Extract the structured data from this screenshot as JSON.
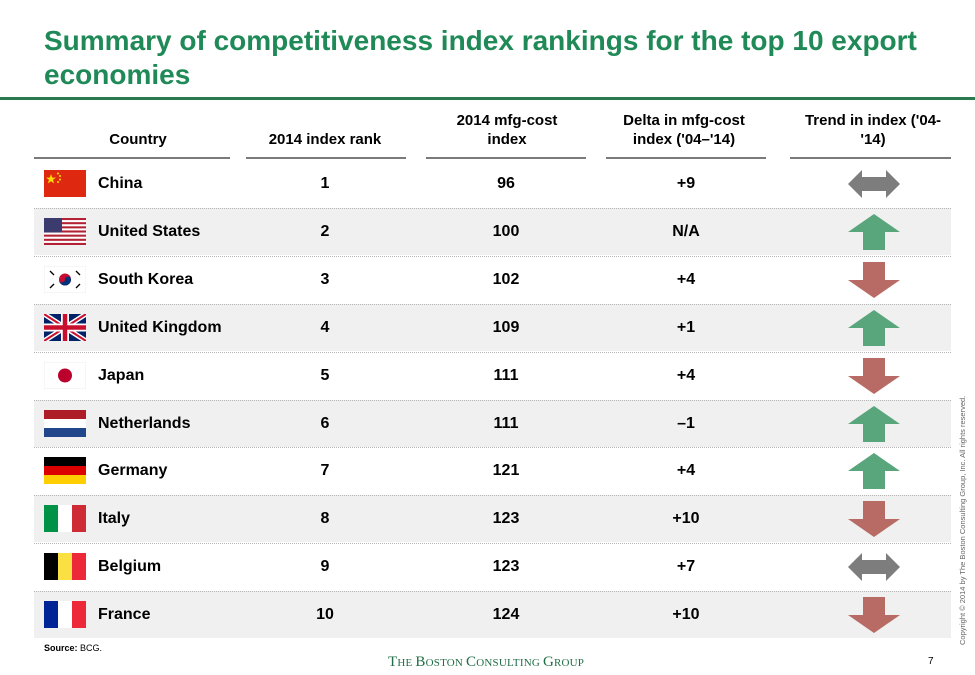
{
  "title": "Summary of competitiveness index rankings for the top 10 export economies",
  "headers": {
    "country": "Country",
    "rank": "2014 index rank",
    "cost": "2014 mfg-cost index",
    "delta": "Delta in mfg-cost index ('04–'14)",
    "trend": "Trend in index ('04-'14)"
  },
  "rows": [
    {
      "country": "China",
      "flag": "china-flag",
      "rank": "1",
      "cost": "96",
      "delta": "+9",
      "trend": "neutral"
    },
    {
      "country": "United States",
      "flag": "usa-flag",
      "rank": "2",
      "cost": "100",
      "delta": "N/A",
      "trend": "up"
    },
    {
      "country": "South Korea",
      "flag": "south-korea-flag",
      "rank": "3",
      "cost": "102",
      "delta": "+4",
      "trend": "down"
    },
    {
      "country": "United Kingdom",
      "flag": "uk-flag",
      "rank": "4",
      "cost": "109",
      "delta": "+1",
      "trend": "up"
    },
    {
      "country": "Japan",
      "flag": "japan-flag",
      "rank": "5",
      "cost": "111",
      "delta": "+4",
      "trend": "down"
    },
    {
      "country": "Netherlands",
      "flag": "netherlands-flag",
      "rank": "6",
      "cost": "111",
      "delta": "–1",
      "trend": "up"
    },
    {
      "country": "Germany",
      "flag": "germany-flag",
      "rank": "7",
      "cost": "121",
      "delta": "+4",
      "trend": "up"
    },
    {
      "country": "Italy",
      "flag": "italy-flag",
      "rank": "8",
      "cost": "123",
      "delta": "+10",
      "trend": "down"
    },
    {
      "country": "Belgium",
      "flag": "belgium-flag",
      "rank": "9",
      "cost": "123",
      "delta": "+7",
      "trend": "neutral"
    },
    {
      "country": "France",
      "flag": "france-flag",
      "rank": "10",
      "cost": "124",
      "delta": "+10",
      "trend": "down"
    }
  ],
  "colors": {
    "title": "#1f8a57",
    "up": "#5aa67c",
    "down": "#b86a64",
    "neutral": "#7d7d7d"
  },
  "footer": {
    "source_label": "Source:",
    "source_value": "BCG.",
    "brand": "The Boston Consulting Group",
    "page": "7",
    "copyright": "Copyright © 2014 by The Boston Consulting Group, Inc. All rights reserved."
  }
}
